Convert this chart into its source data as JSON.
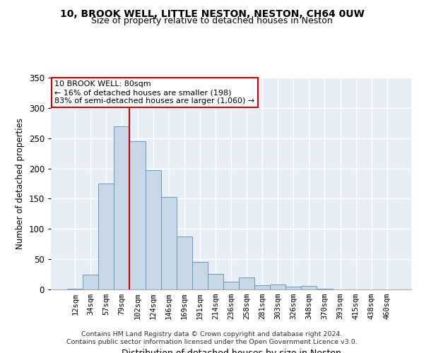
{
  "title1": "10, BROOK WELL, LITTLE NESTON, NESTON, CH64 0UW",
  "title2": "Size of property relative to detached houses in Neston",
  "xlabel": "Distribution of detached houses by size in Neston",
  "ylabel": "Number of detached properties",
  "bar_labels": [
    "12sqm",
    "34sqm",
    "57sqm",
    "79sqm",
    "102sqm",
    "124sqm",
    "146sqm",
    "169sqm",
    "191sqm",
    "214sqm",
    "236sqm",
    "258sqm",
    "281sqm",
    "303sqm",
    "326sqm",
    "348sqm",
    "370sqm",
    "393sqm",
    "415sqm",
    "438sqm",
    "460sqm"
  ],
  "bar_heights": [
    1,
    25,
    175,
    270,
    245,
    197,
    153,
    87,
    46,
    26,
    13,
    20,
    7,
    8,
    5,
    6,
    1,
    0,
    0,
    0,
    0
  ],
  "bar_color": "#c8d8e8",
  "bar_edge_color": "#6699bb",
  "annotation_text": "10 BROOK WELL: 80sqm\n← 16% of detached houses are smaller (198)\n83% of semi-detached houses are larger (1,060) →",
  "vline_color": "#cc0000",
  "annotation_box_color": "#ffffff",
  "annotation_box_edge": "#cc0000",
  "footer1": "Contains HM Land Registry data © Crown copyright and database right 2024.",
  "footer2": "Contains public sector information licensed under the Open Government Licence v3.0.",
  "background_color": "#e8eef5",
  "ylim": [
    0,
    350
  ],
  "yticks": [
    0,
    50,
    100,
    150,
    200,
    250,
    300,
    350
  ],
  "grid_color": "#ffffff",
  "title_fontsize": 10,
  "subtitle_fontsize": 9
}
